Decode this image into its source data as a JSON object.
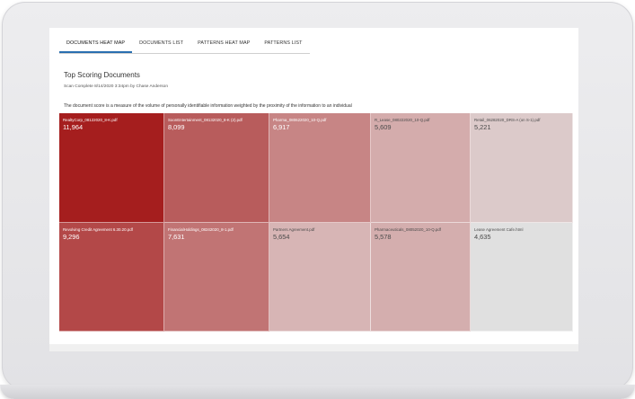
{
  "tabs": [
    {
      "label": "DOCUMENTS HEAT MAP",
      "active": true
    },
    {
      "label": "DOCUMENTS LIST",
      "active": false
    },
    {
      "label": "PATTERNS HEAT MAP",
      "active": false
    },
    {
      "label": "PATTERNS LIST",
      "active": false
    }
  ],
  "page_title": "Top Scoring Documents",
  "scan_info": "Scan Complete 8/14/2020 3:34pm by Chase Anderson",
  "description": "The document score is a measure of the volume of personally identifiable information weighted by the proximity of the information to an individual",
  "documents": [
    {
      "name": "RealtyCorp_08122020_8-K.pdf",
      "score": "11,964",
      "color": "#a51e1e"
    },
    {
      "name": "SoonEntertainment_08132020_8-K (2).pdf",
      "score": "8,099",
      "color": "#b85c5c"
    },
    {
      "name": "Pharma_080622020_10-Q.pdf",
      "score": "6,917",
      "color": "#c78585"
    },
    {
      "name": "R_Lease_080222020_10-Q.pdf",
      "score": "5,609",
      "color": "#d4acac"
    },
    {
      "name": "Retail_06282020_DRS-A (on S-1).pdf",
      "score": "5,221",
      "color": "#dccaca"
    },
    {
      "name": "Revolving Credit Agreement 6.30.20.pdf",
      "score": "9,296",
      "color": "#b34848"
    },
    {
      "name": "FinancialHoldings_08242020_8-1.pdf",
      "score": "7,631",
      "color": "#c17474"
    },
    {
      "name": "Partners Agreement.pdf",
      "score": "5,654",
      "color": "#d7b5b5"
    },
    {
      "name": "Pharmaceuticals_08052020_10-Q.pdf",
      "score": "5,578",
      "color": "#d4aeae"
    },
    {
      "name": "Lease Agreement Cafe.html",
      "score": "4,635",
      "color": "#e0e0e0"
    }
  ]
}
